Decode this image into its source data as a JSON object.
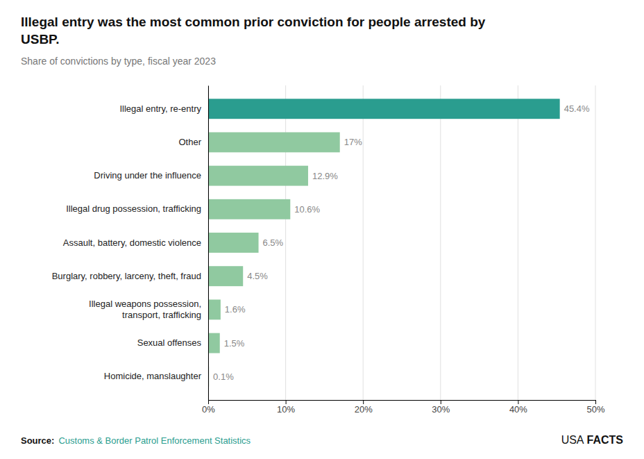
{
  "chart_data": {
    "type": "bar",
    "orientation": "horizontal",
    "title": "Illegal entry was the most common prior conviction for people arrested by\nUSBP.",
    "subtitle": "Share of convictions by type, fiscal year 2023",
    "categories": [
      "Homicide, manslaughter",
      "Sexual offenses",
      "Illegal weapons possession,\ntransport, trafficking",
      "Burglary, robbery, larceny, theft, fraud",
      "Assault, battery, domestic violence",
      "Illegal drug possession, trafficking",
      "Driving under the influence",
      "Other",
      "Illegal entry, re-entry"
    ],
    "values": [
      0.1,
      1.5,
      1.6,
      4.5,
      6.5,
      10.6,
      12.9,
      17.0,
      45.4
    ],
    "value_labels": [
      "0.1%",
      "1.5%",
      "1.6%",
      "4.5%",
      "6.5%",
      "10.6%",
      "12.9%",
      "17%",
      "45.4%"
    ],
    "data_labels": true,
    "colors": [
      "#90c9a0",
      "#90c9a0",
      "#90c9a0",
      "#90c9a0",
      "#90c9a0",
      "#90c9a0",
      "#90c9a0",
      "#90c9a0",
      "#2a9d8f"
    ],
    "xlim": [
      0,
      50
    ],
    "xticks": [
      {
        "value": 0,
        "label": "0%"
      },
      {
        "value": 10,
        "label": "10%"
      },
      {
        "value": 20,
        "label": "20%"
      },
      {
        "value": 30,
        "label": "30%"
      },
      {
        "value": 40,
        "label": "40%"
      },
      {
        "value": 50,
        "label": "50%"
      }
    ],
    "grid": true,
    "annotations": [
      {
        "text": "Source:"
      },
      {
        "text": "Customs & Border Patrol Enforcement Statistics",
        "color": "#2a9d8f"
      },
      {
        "text": "USA"
      },
      {
        "text": "FACTS"
      }
    ]
  }
}
